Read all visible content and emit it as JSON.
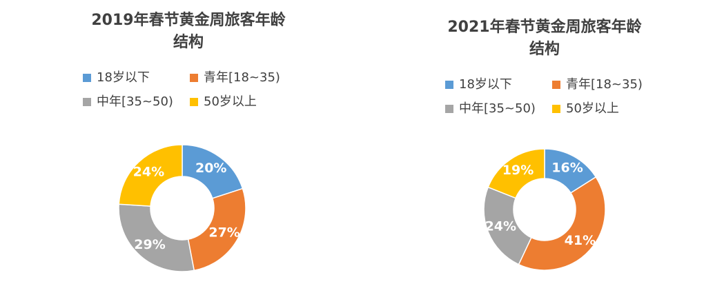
{
  "chart_data": [
    {
      "type": "pie",
      "title": "2019年春节黄金周旅客年龄结构",
      "categories": [
        "18岁以下",
        "青年[18~35)",
        "中年[35~50)",
        "50岁以上"
      ],
      "values": [
        20,
        27,
        29,
        24
      ],
      "value_labels": [
        "20%",
        "27%",
        "29%",
        "24%"
      ],
      "colors": [
        "#5b9bd5",
        "#ed7d31",
        "#a5a5a5",
        "#ffc000"
      ]
    },
    {
      "type": "pie",
      "title": "2021年春节黄金周旅客年龄结构",
      "categories": [
        "18岁以下",
        "青年[18~35)",
        "中年[35~50)",
        "50岁以上"
      ],
      "values": [
        16,
        41,
        24,
        19
      ],
      "value_labels": [
        "16%",
        "41%",
        "24%",
        "19%"
      ],
      "colors": [
        "#5b9bd5",
        "#ed7d31",
        "#a5a5a5",
        "#ffc000"
      ]
    }
  ]
}
